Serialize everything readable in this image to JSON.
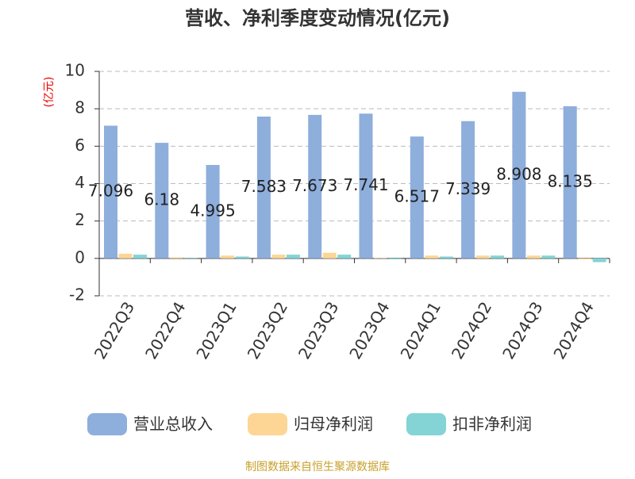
{
  "chart_data": {
    "type": "bar",
    "title": "营收、净利季度变动情况(亿元)",
    "y_label": "(亿元)",
    "categories": [
      "2022Q3",
      "2022Q4",
      "2023Q1",
      "2023Q2",
      "2023Q3",
      "2023Q4",
      "2024Q1",
      "2024Q2",
      "2024Q3",
      "2024Q4"
    ],
    "series": [
      {
        "name": "营业总收入",
        "color": "#8eaedc",
        "values": [
          7.096,
          6.18,
          4.995,
          7.583,
          7.673,
          7.741,
          6.517,
          7.339,
          8.908,
          8.135
        ],
        "show_labels": true
      },
      {
        "name": "归母净利润",
        "color": "#fdd695",
        "values": [
          0.25,
          0.05,
          0.15,
          0.2,
          0.3,
          0.02,
          0.15,
          0.15,
          0.15,
          -0.05
        ]
      },
      {
        "name": "扣非净利润",
        "color": "#84d4d6",
        "values": [
          0.2,
          0.03,
          0.1,
          0.2,
          0.2,
          -0.05,
          0.1,
          0.15,
          0.15,
          -0.2
        ]
      }
    ],
    "ylim": [
      -2,
      10
    ],
    "yticks": [
      -2,
      0,
      2,
      4,
      6,
      8,
      10
    ],
    "grid": true,
    "legend": "bottom",
    "source": "制图数据来自恒生聚源数据库"
  }
}
